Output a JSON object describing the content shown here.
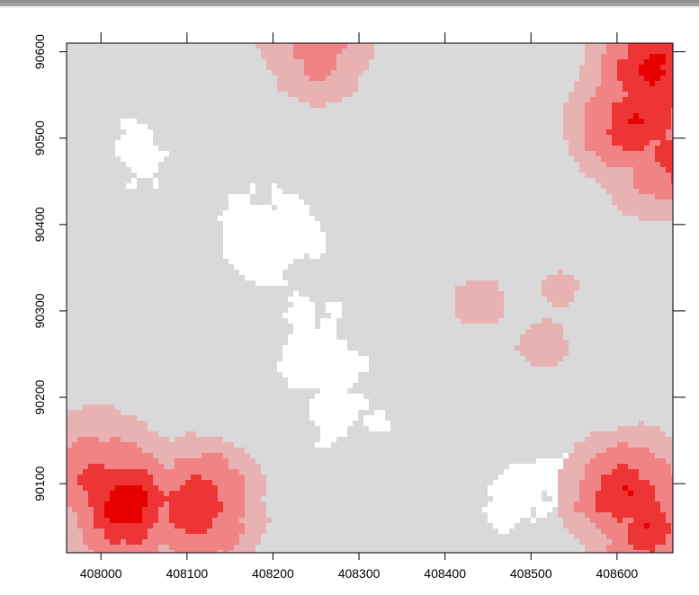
{
  "chart_data": {
    "type": "heatmap",
    "title": "",
    "xlabel": "",
    "ylabel": "",
    "xlim": [
      407960,
      408665
    ],
    "ylim": [
      90020,
      90610
    ],
    "x_ticks": [
      408000,
      408100,
      408200,
      408300,
      408400,
      408500,
      408600
    ],
    "y_ticks": [
      90100,
      90200,
      90300,
      90400,
      90500,
      90600
    ],
    "x_tick_labels": [
      "408000",
      "408100",
      "408200",
      "408300",
      "408400",
      "408500",
      "408600"
    ],
    "y_tick_labels": [
      "90100",
      "90200",
      "90300",
      "90400",
      "90500",
      "90600"
    ],
    "colors": {
      "background": "#d9d9d9",
      "low": "#ffffff",
      "mid_low": "#e8b2b2",
      "mid": "#f08484",
      "high": "#ee3535",
      "peak": "#e60000",
      "frame": "#000000"
    },
    "hotspots": [
      {
        "x": 408030,
        "y": 90080,
        "level": 1.0
      },
      {
        "x": 408110,
        "y": 90075,
        "level": 0.9
      },
      {
        "x": 408000,
        "y": 90110,
        "level": 0.8
      },
      {
        "x": 408640,
        "y": 90580,
        "level": 1.0
      },
      {
        "x": 408620,
        "y": 90520,
        "level": 0.9
      },
      {
        "x": 408650,
        "y": 90480,
        "level": 0.8
      },
      {
        "x": 408610,
        "y": 90090,
        "level": 0.85
      },
      {
        "x": 408630,
        "y": 90060,
        "level": 0.8
      },
      {
        "x": 408250,
        "y": 90605,
        "level": 0.6
      }
    ],
    "moderate_regions": [
      {
        "x": 408440,
        "y": 90310,
        "level": 0.35
      },
      {
        "x": 408510,
        "y": 90260,
        "level": 0.35
      },
      {
        "x": 408530,
        "y": 90330,
        "level": 0.3
      }
    ],
    "low_regions": [
      {
        "x": 408200,
        "y": 90390,
        "level": 1.0
      },
      {
        "x": 408250,
        "y": 90260,
        "level": 1.0
      },
      {
        "x": 408050,
        "y": 90470,
        "level": 0.9
      },
      {
        "x": 408280,
        "y": 90180,
        "level": 0.9
      },
      {
        "x": 408480,
        "y": 90080,
        "level": 0.8
      },
      {
        "x": 408520,
        "y": 90110,
        "level": 0.7
      }
    ]
  }
}
